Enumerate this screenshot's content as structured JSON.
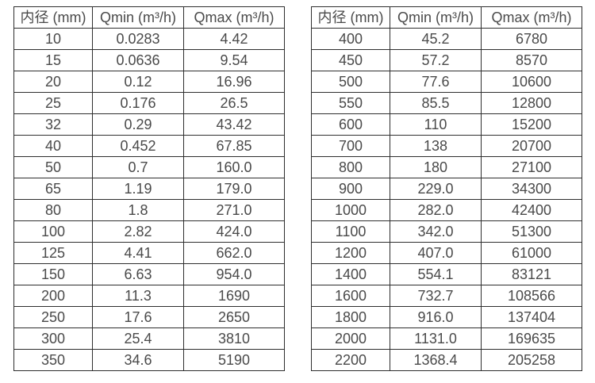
{
  "page": {
    "background_color": "#ffffff",
    "text_color": "#4a4a4a",
    "border_color": "#2e2e2e"
  },
  "chart_data": {
    "type": "table",
    "title": "",
    "tables": [
      {
        "columns": [
          "内径 (mm)",
          "Qmin (m³/h)",
          "Qmax (m³/h)"
        ],
        "rows": [
          [
            "10",
            "0.0283",
            "4.42"
          ],
          [
            "15",
            "0.0636",
            "9.54"
          ],
          [
            "20",
            "0.12",
            "16.96"
          ],
          [
            "25",
            "0.176",
            "26.5"
          ],
          [
            "32",
            "0.29",
            "43.42"
          ],
          [
            "40",
            "0.452",
            "67.85"
          ],
          [
            "50",
            "0.7",
            "160.0"
          ],
          [
            "65",
            "1.19",
            "179.0"
          ],
          [
            "80",
            "1.8",
            "271.0"
          ],
          [
            "100",
            "2.82",
            "424.0"
          ],
          [
            "125",
            "4.41",
            "662.0"
          ],
          [
            "150",
            "6.63",
            "954.0"
          ],
          [
            "200",
            "11.3",
            "1690"
          ],
          [
            "250",
            "17.6",
            "2650"
          ],
          [
            "300",
            "25.4",
            "3810"
          ],
          [
            "350",
            "34.6",
            "5190"
          ]
        ]
      },
      {
        "columns": [
          "内径 (mm)",
          "Qmin (m³/h)",
          "Qmax (m³/h)"
        ],
        "rows": [
          [
            "400",
            "45.2",
            "6780"
          ],
          [
            "450",
            "57.2",
            "8570"
          ],
          [
            "500",
            "77.6",
            "10600"
          ],
          [
            "550",
            "85.5",
            "12800"
          ],
          [
            "600",
            "110",
            "15200"
          ],
          [
            "700",
            "138",
            "20700"
          ],
          [
            "800",
            "180",
            "27100"
          ],
          [
            "900",
            "229.0",
            "34300"
          ],
          [
            "1000",
            "282.0",
            "42400"
          ],
          [
            "1100",
            "342.0",
            "51300"
          ],
          [
            "1200",
            "407.0",
            "61000"
          ],
          [
            "1400",
            "554.1",
            "83121"
          ],
          [
            "1600",
            "732.7",
            "108566"
          ],
          [
            "1800",
            "916.0",
            "137404"
          ],
          [
            "2000",
            "1131.0",
            "169635"
          ],
          [
            "2200",
            "1368.4",
            "205258"
          ]
        ]
      }
    ]
  },
  "tables": [
    {
      "headers": [
        "内径 (mm)",
        "Qmin (m³/h)",
        "Qmax (m³/h)"
      ],
      "rows": [
        [
          "10",
          "0.0283",
          "4.42"
        ],
        [
          "15",
          "0.0636",
          "9.54"
        ],
        [
          "20",
          "0.12",
          "16.96"
        ],
        [
          "25",
          "0.176",
          "26.5"
        ],
        [
          "32",
          "0.29",
          "43.42"
        ],
        [
          "40",
          "0.452",
          "67.85"
        ],
        [
          "50",
          "0.7",
          "160.0"
        ],
        [
          "65",
          "1.19",
          "179.0"
        ],
        [
          "80",
          "1.8",
          "271.0"
        ],
        [
          "100",
          "2.82",
          "424.0"
        ],
        [
          "125",
          "4.41",
          "662.0"
        ],
        [
          "150",
          "6.63",
          "954.0"
        ],
        [
          "200",
          "11.3",
          "1690"
        ],
        [
          "250",
          "17.6",
          "2650"
        ],
        [
          "300",
          "25.4",
          "3810"
        ],
        [
          "350",
          "34.6",
          "5190"
        ]
      ]
    },
    {
      "headers": [
        "内径 (mm)",
        "Qmin (m³/h)",
        "Qmax (m³/h)"
      ],
      "rows": [
        [
          "400",
          "45.2",
          "6780"
        ],
        [
          "450",
          "57.2",
          "8570"
        ],
        [
          "500",
          "77.6",
          "10600"
        ],
        [
          "550",
          "85.5",
          "12800"
        ],
        [
          "600",
          "110",
          "15200"
        ],
        [
          "700",
          "138",
          "20700"
        ],
        [
          "800",
          "180",
          "27100"
        ],
        [
          "900",
          "229.0",
          "34300"
        ],
        [
          "1000",
          "282.0",
          "42400"
        ],
        [
          "1100",
          "342.0",
          "51300"
        ],
        [
          "1200",
          "407.0",
          "61000"
        ],
        [
          "1400",
          "554.1",
          "83121"
        ],
        [
          "1600",
          "732.7",
          "108566"
        ],
        [
          "1800",
          "916.0",
          "137404"
        ],
        [
          "2000",
          "1131.0",
          "169635"
        ],
        [
          "2200",
          "1368.4",
          "205258"
        ]
      ]
    }
  ]
}
